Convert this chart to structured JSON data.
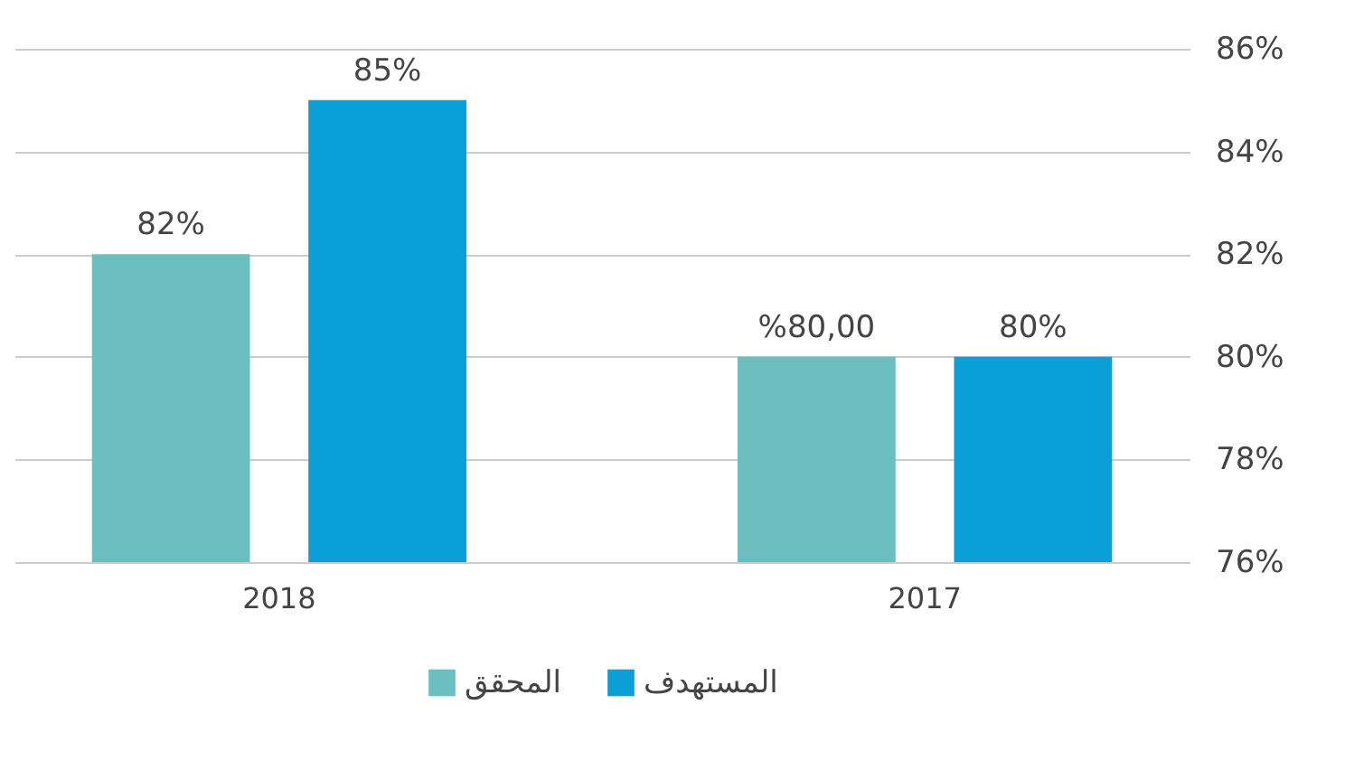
{
  "chart_data": {
    "type": "bar",
    "categories": [
      "2018",
      "2017"
    ],
    "series": [
      {
        "name": "المحقق",
        "color": "#6dbfbf",
        "values": [
          82,
          80
        ],
        "value_labels": [
          "82%",
          "%80,00"
        ]
      },
      {
        "name": "المستهدف",
        "color": "#0a9fd6",
        "values": [
          85,
          80
        ],
        "value_labels": [
          "85%",
          "80%"
        ]
      }
    ],
    "ylim": [
      76,
      86
    ],
    "yticks": [
      {
        "value": 76,
        "label": "76%"
      },
      {
        "value": 78,
        "label": "78%"
      },
      {
        "value": 80,
        "label": "80%"
      },
      {
        "value": 82,
        "label": "82%"
      },
      {
        "value": 84,
        "label": "84%"
      },
      {
        "value": 86,
        "label": "86%"
      }
    ],
    "grid": "y",
    "legend": "bottom"
  }
}
